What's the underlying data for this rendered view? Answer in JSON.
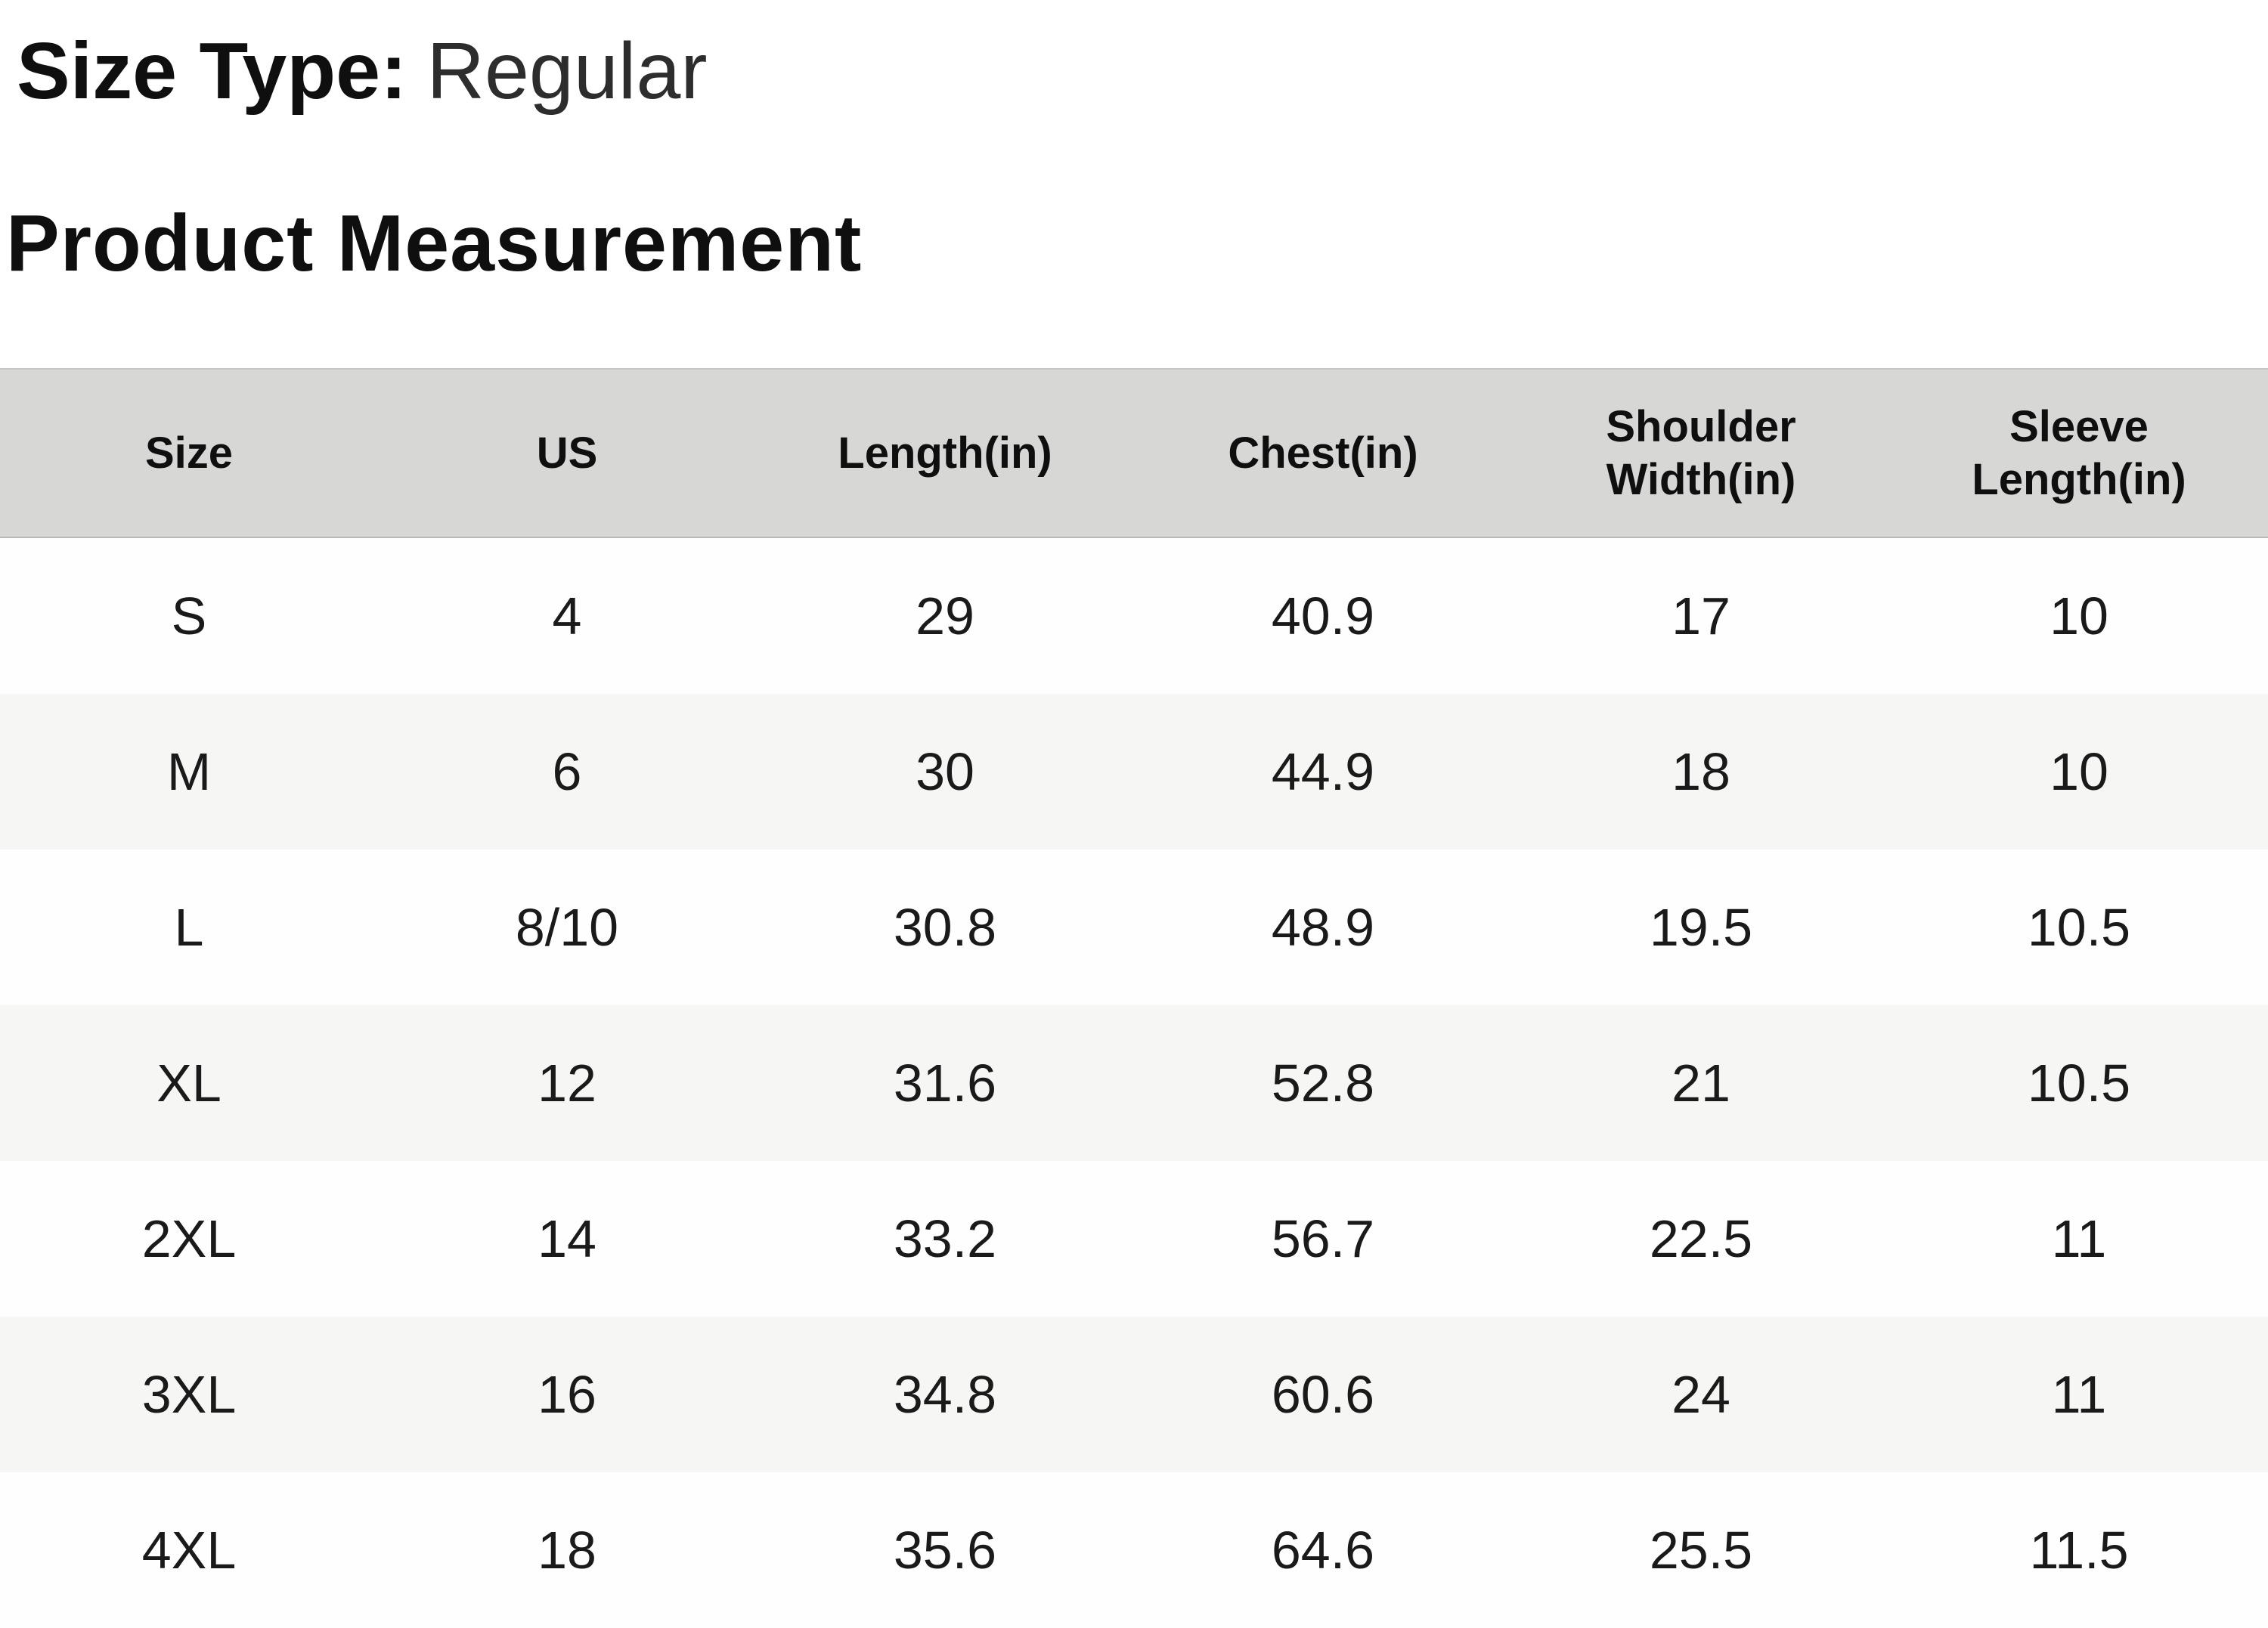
{
  "header": {
    "size_type_label": "Size Type:",
    "size_type_value": "Regular",
    "section_title": "Product Measurement"
  },
  "table": {
    "columns": [
      "Size",
      "US",
      "Length(in)",
      "Chest(in)",
      "Shoulder Width(in)",
      "Sleeve Length(in)"
    ],
    "rows": [
      [
        "S",
        "4",
        "29",
        "40.9",
        "17",
        "10"
      ],
      [
        "M",
        "6",
        "30",
        "44.9",
        "18",
        "10"
      ],
      [
        "L",
        "8/10",
        "30.8",
        "48.9",
        "19.5",
        "10.5"
      ],
      [
        "XL",
        "12",
        "31.6",
        "52.8",
        "21",
        "10.5"
      ],
      [
        "2XL",
        "14",
        "33.2",
        "56.7",
        "22.5",
        "11"
      ],
      [
        "3XL",
        "16",
        "34.8",
        "60.6",
        "24",
        "11"
      ],
      [
        "4XL",
        "18",
        "35.6",
        "64.6",
        "25.5",
        "11.5"
      ]
    ]
  },
  "colors": {
    "header_row_bg": "#d7d7d5",
    "row_even_bg": "#f6f6f4",
    "row_odd_bg": "#fefefe",
    "heading_text": "#0f0f0f",
    "size_type_value_text": "#2d2d2d",
    "table_text": "#1a1a1a"
  }
}
